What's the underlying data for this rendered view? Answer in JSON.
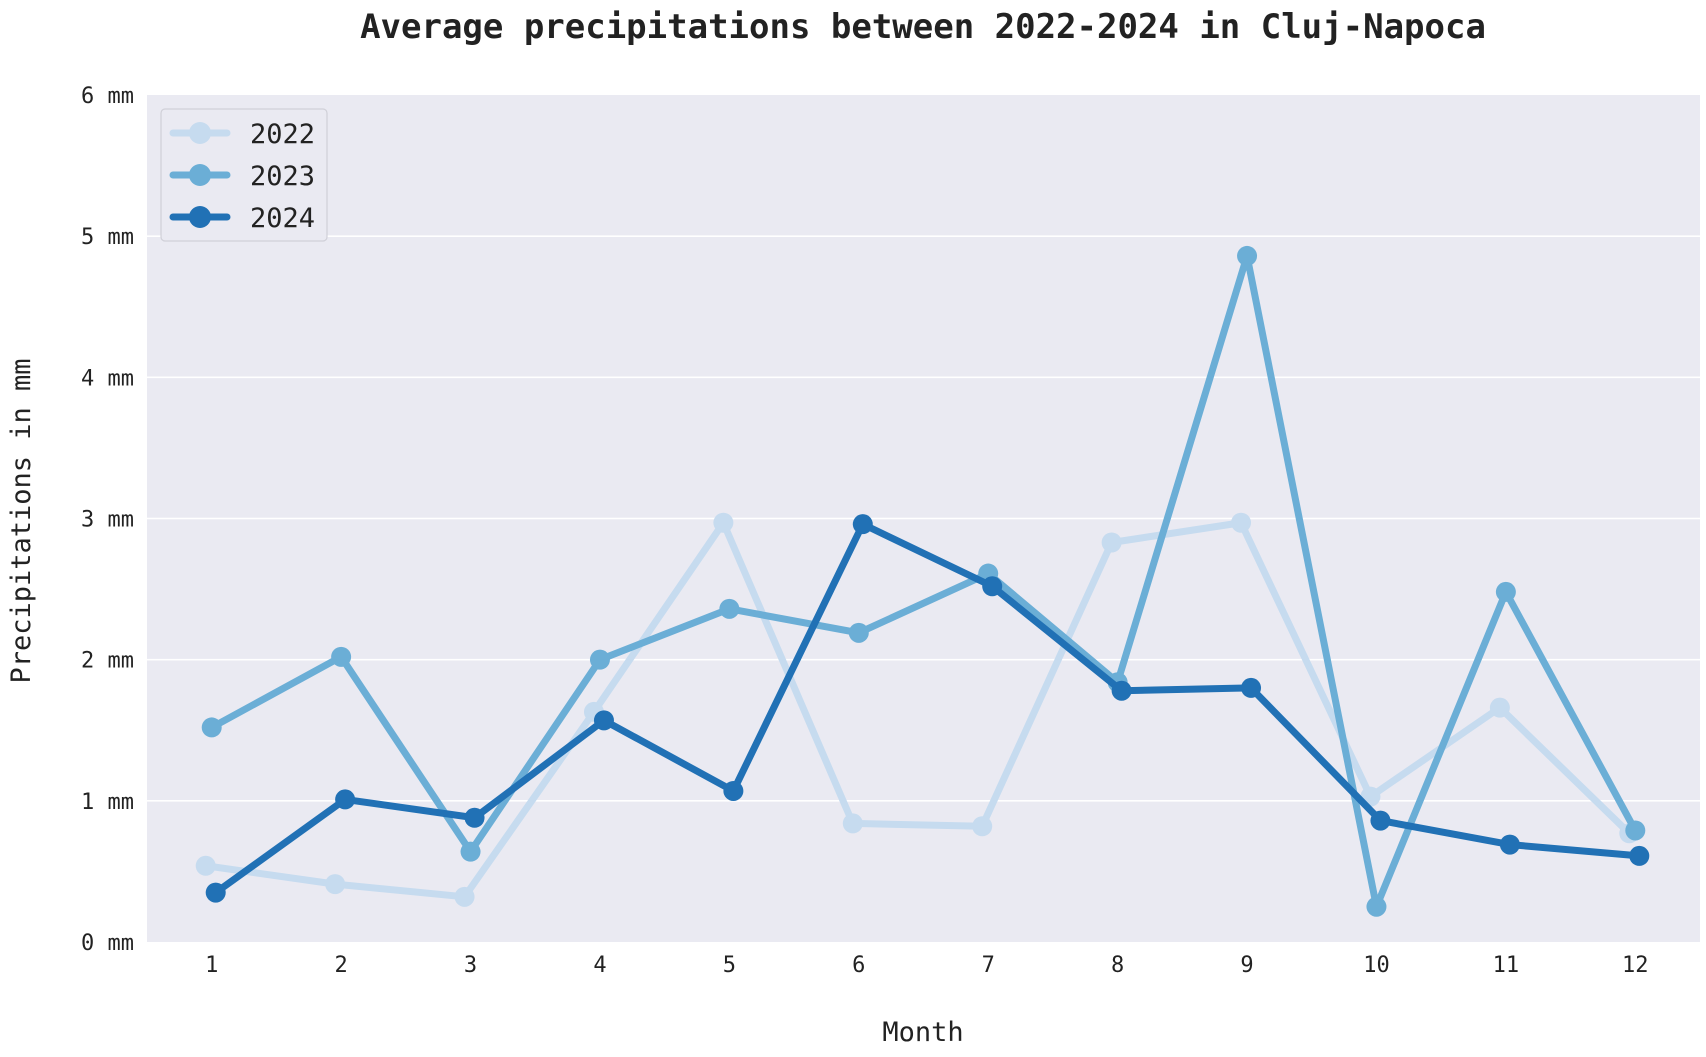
{
  "chart_data": {
    "type": "line",
    "title": "Average precipitations between 2022-2024 in Cluj-Napoca",
    "xlabel": "Month",
    "ylabel": "Precipitations in mm",
    "categories": [
      "1",
      "2",
      "3",
      "4",
      "5",
      "6",
      "7",
      "8",
      "9",
      "10",
      "11",
      "12"
    ],
    "ylim": [
      0,
      6
    ],
    "yticks": [
      "0 mm",
      "1 mm",
      "2 mm",
      "3 mm",
      "4 mm",
      "5 mm",
      "6 mm"
    ],
    "grid": true,
    "legend_position": "top-left",
    "background": "#eaeaf2",
    "series": [
      {
        "name": "2022",
        "color": "#c6dbef",
        "values": [
          0.54,
          0.41,
          0.32,
          1.63,
          2.97,
          0.84,
          0.82,
          2.83,
          2.97,
          1.03,
          1.66,
          0.77
        ]
      },
      {
        "name": "2023",
        "color": "#6baed6",
        "values": [
          1.52,
          2.02,
          0.64,
          2.0,
          2.36,
          2.19,
          2.61,
          1.84,
          4.86,
          0.25,
          2.48,
          0.79
        ]
      },
      {
        "name": "2024",
        "color": "#2171b5",
        "values": [
          0.35,
          1.01,
          0.88,
          1.57,
          1.07,
          2.96,
          2.52,
          1.78,
          1.8,
          0.86,
          0.69,
          0.61
        ]
      }
    ]
  }
}
